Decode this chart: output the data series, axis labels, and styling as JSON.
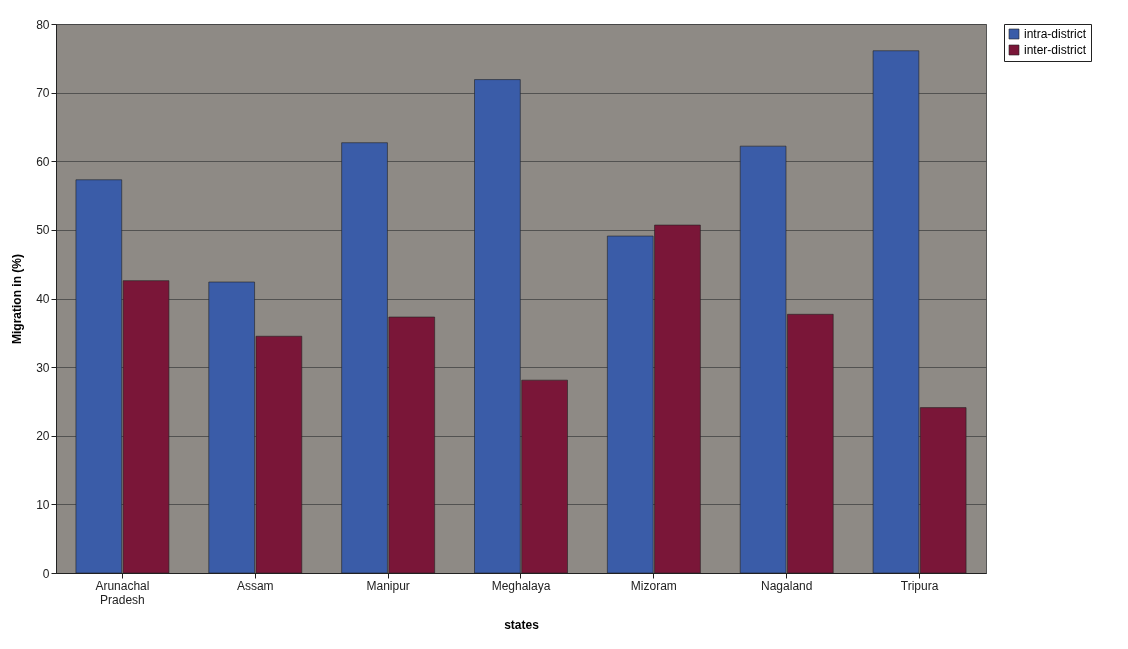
{
  "chart_data": {
    "type": "bar",
    "xlabel": "states",
    "ylabel": "Migration in (%)",
    "categories": [
      "Arunachal Pradesh",
      "Assam",
      "Manipur",
      "Meghalaya",
      "Mizoram",
      "Nagaland",
      "Tripura"
    ],
    "series": [
      {
        "name": "intra-district",
        "color": "#3a5ca8",
        "values": [
          57.3,
          42.4,
          62.7,
          71.9,
          49.1,
          62.2,
          76.1
        ]
      },
      {
        "name": "inter-district",
        "color": "#7a1638",
        "values": [
          42.6,
          34.5,
          37.3,
          28.1,
          50.7,
          37.7,
          24.1
        ]
      }
    ],
    "ylim": [
      0,
      80
    ],
    "yticks": [
      0,
      10,
      20,
      30,
      40,
      50,
      60,
      70,
      80
    ],
    "grid": "y",
    "legend": "right"
  }
}
